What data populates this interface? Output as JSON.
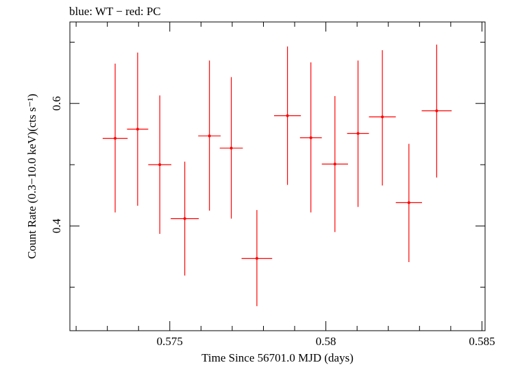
{
  "chart_data": {
    "type": "scatter",
    "title": "blue: WT − red: PC",
    "xlabel": "Time Since 56701.0 MJD (days)",
    "ylabel": "Count Rate (0.3−10.0 keV)(cts s⁻¹)",
    "xlim": [
      0.5718,
      0.5851
    ],
    "ylim": [
      0.229,
      0.733
    ],
    "x_ticks": [
      0.575,
      0.58,
      0.585
    ],
    "x_tick_labels": [
      "0.575",
      "0.58",
      "0.585"
    ],
    "y_ticks": [
      0.4,
      0.6
    ],
    "y_tick_labels": [
      "0.4",
      "0.6"
    ],
    "grid": false,
    "series": [
      {
        "name": "PC",
        "color": "#ff0000",
        "points": [
          {
            "x": 0.57325,
            "xerr": 0.0004,
            "y": 0.543,
            "yerr_lo": 0.121,
            "yerr_hi": 0.122
          },
          {
            "x": 0.57397,
            "xerr": 0.00034,
            "y": 0.558,
            "yerr_lo": 0.125,
            "yerr_hi": 0.125
          },
          {
            "x": 0.57468,
            "xerr": 0.00037,
            "y": 0.5,
            "yerr_lo": 0.113,
            "yerr_hi": 0.113
          },
          {
            "x": 0.57548,
            "xerr": 0.00045,
            "y": 0.412,
            "yerr_lo": 0.093,
            "yerr_hi": 0.093
          },
          {
            "x": 0.57627,
            "xerr": 0.00036,
            "y": 0.547,
            "yerr_lo": 0.122,
            "yerr_hi": 0.123
          },
          {
            "x": 0.57697,
            "xerr": 0.00037,
            "y": 0.527,
            "yerr_lo": 0.115,
            "yerr_hi": 0.116
          },
          {
            "x": 0.57779,
            "xerr": 0.00049,
            "y": 0.347,
            "yerr_lo": 0.078,
            "yerr_hi": 0.079
          },
          {
            "x": 0.57877,
            "xerr": 0.00043,
            "y": 0.58,
            "yerr_lo": 0.113,
            "yerr_hi": 0.113
          },
          {
            "x": 0.57952,
            "xerr": 0.00035,
            "y": 0.544,
            "yerr_lo": 0.122,
            "yerr_hi": 0.123
          },
          {
            "x": 0.58029,
            "xerr": 0.00042,
            "y": 0.501,
            "yerr_lo": 0.111,
            "yerr_hi": 0.111
          },
          {
            "x": 0.58103,
            "xerr": 0.00035,
            "y": 0.551,
            "yerr_lo": 0.12,
            "yerr_hi": 0.119
          },
          {
            "x": 0.58181,
            "xerr": 0.00043,
            "y": 0.578,
            "yerr_lo": 0.112,
            "yerr_hi": 0.109
          },
          {
            "x": 0.58266,
            "xerr": 0.00042,
            "y": 0.438,
            "yerr_lo": 0.097,
            "yerr_hi": 0.096
          },
          {
            "x": 0.58355,
            "xerr": 0.00048,
            "y": 0.588,
            "yerr_lo": 0.109,
            "yerr_hi": 0.108
          }
        ]
      }
    ]
  }
}
